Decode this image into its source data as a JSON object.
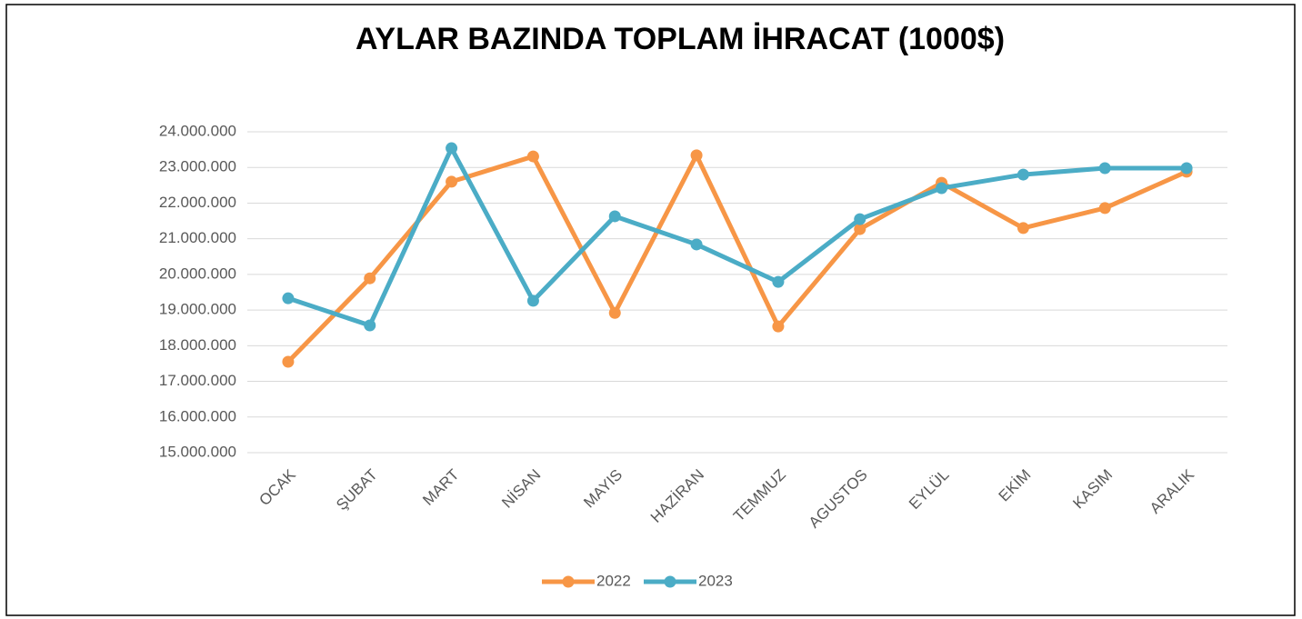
{
  "chart_data": {
    "type": "line",
    "title": "AYLAR BAZINDA TOPLAM İHRACAT (1000$)",
    "categories": [
      "OCAK",
      "ŞUBAT",
      "MART",
      "NİSAN",
      "MAYIS",
      "HAZİRAN",
      "TEMMUZ",
      "AGUSTOS",
      "EYLÜL",
      "EKİM",
      "KASIM",
      "ARALIK"
    ],
    "series": [
      {
        "name": "2022",
        "color": "#f79646",
        "values": [
          17550000,
          19890000,
          22600000,
          23310000,
          18920000,
          23340000,
          18540000,
          21270000,
          22570000,
          21300000,
          21860000,
          22880000
        ]
      },
      {
        "name": "2023",
        "color": "#4bacc6",
        "values": [
          19330000,
          18570000,
          23540000,
          19260000,
          21630000,
          20840000,
          19790000,
          21550000,
          22420000,
          22800000,
          22980000,
          22980000
        ]
      }
    ],
    "ylim": [
      15000000,
      24000000
    ],
    "yticks": [
      {
        "value": 15000000,
        "label": "15.000.000"
      },
      {
        "value": 16000000,
        "label": "16.000.000"
      },
      {
        "value": 17000000,
        "label": "17.000.000"
      },
      {
        "value": 18000000,
        "label": "18.000.000"
      },
      {
        "value": 19000000,
        "label": "19.000.000"
      },
      {
        "value": 20000000,
        "label": "20.000.000"
      },
      {
        "value": 21000000,
        "label": "21.000.000"
      },
      {
        "value": 22000000,
        "label": "22.000.000"
      },
      {
        "value": 23000000,
        "label": "23.000.000"
      },
      {
        "value": 24000000,
        "label": "24.000.000"
      }
    ],
    "grid": true,
    "legend": "bottom"
  }
}
